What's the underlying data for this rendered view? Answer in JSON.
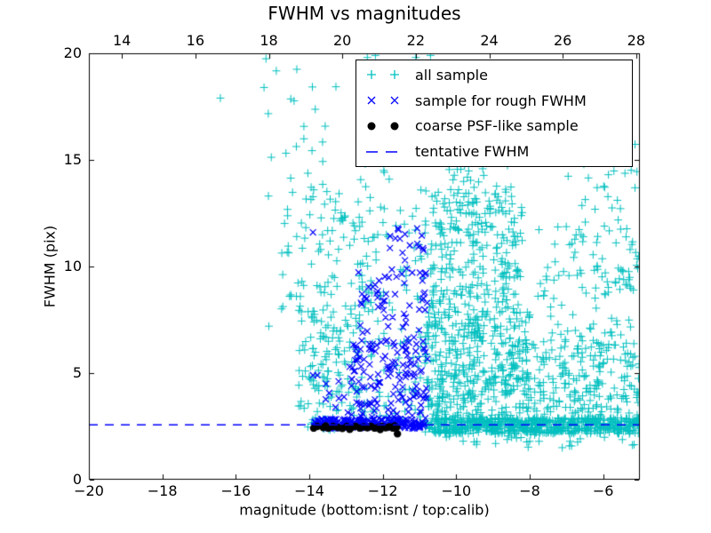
{
  "chart_data": {
    "type": "scatter",
    "title": "FWHM vs magnitudes",
    "xlabel": "magnitude (bottom:isnt / top:calib)",
    "ylabel": "FWHM (pix)",
    "grid": false,
    "legend_position": "upper right",
    "background_color": "#ffffff",
    "axes_color": "#000000",
    "x_bottom": {
      "min": -20,
      "max": -5,
      "ticks": [
        -20,
        -18,
        -16,
        -14,
        -12,
        -10,
        -8,
        -6
      ],
      "tick_labels": [
        "−20",
        "−18",
        "−16",
        "−14",
        "−12",
        "−10",
        "−8",
        "−6"
      ]
    },
    "x_top": {
      "min": 13.1,
      "max": 28.1,
      "ticks": [
        14,
        16,
        18,
        20,
        22,
        24,
        26,
        28
      ],
      "tick_labels": [
        "14",
        "16",
        "18",
        "20",
        "22",
        "24",
        "26",
        "28"
      ]
    },
    "y": {
      "min": 0,
      "max": 20,
      "ticks": [
        0,
        5,
        10,
        15,
        20
      ],
      "tick_labels": [
        "0",
        "5",
        "10",
        "15",
        "20"
      ]
    },
    "tentative_fwhm_value": 2.57,
    "series": [
      {
        "name": "all sample",
        "marker": "plus",
        "color": "#00bfbf",
        "clusters": [
          {
            "n": 28,
            "x": [
              -15.3,
              -13.1
            ],
            "y": [
              13.0,
              19.8
            ]
          },
          {
            "n": 85,
            "x": [
              -14.8,
              -12.2
            ],
            "y": [
              8.0,
              13.5
            ]
          },
          {
            "n": 130,
            "x": [
              -14.3,
              -12.6
            ],
            "y": [
              2.9,
              8.0
            ]
          },
          {
            "n": 70,
            "x": [
              -12.7,
              -10.7
            ],
            "y": [
              12.0,
              19.5
            ]
          },
          {
            "n": 70,
            "x": [
              -12.7,
              -10.7
            ],
            "y": [
              5.5,
              12.0
            ]
          },
          {
            "n": 45,
            "x": [
              -12.6,
              -10.85
            ],
            "y": [
              2.5,
              5.5
            ]
          },
          {
            "n": 420,
            "x": [
              -10.85,
              -8.0
            ],
            "y": [
              2.9,
              8.0
            ]
          },
          {
            "n": 260,
            "x": [
              -10.7,
              -8.2
            ],
            "y": [
              8.0,
              13.5
            ]
          },
          {
            "n": 80,
            "x": [
              -10.5,
              -8.5
            ],
            "y": [
              13.5,
              19.5
            ]
          },
          {
            "n": 230,
            "x": [
              -8.2,
              -5.0
            ],
            "y": [
              2.7,
              6.5
            ]
          },
          {
            "n": 110,
            "x": [
              -7.8,
              -5.0
            ],
            "y": [
              6.5,
              12.0
            ]
          },
          {
            "n": 30,
            "x": [
              -7.0,
              -5.0
            ],
            "y": [
              12.0,
              16.5
            ]
          },
          {
            "n": 650,
            "x": [
              -10.85,
              -4.95
            ],
            "y": [
              2.15,
              2.9
            ]
          },
          {
            "n": 28,
            "x": [
              -10.5,
              -5.1
            ],
            "y": [
              1.5,
              2.15
            ]
          },
          {
            "n": 18,
            "x": [
              -14.05,
              -12.8
            ],
            "y": [
              2.3,
              2.9
            ]
          }
        ],
        "points": [
          [
            -16.42,
            17.9
          ],
          [
            -15.1,
            7.2
          ],
          [
            -12.42,
            19.8
          ],
          [
            -12.3,
            19.4
          ],
          [
            -12.2,
            19.9
          ],
          [
            -11.1,
            19.8
          ],
          [
            -10.7,
            19.9
          ],
          [
            -13.95,
            4.7
          ],
          [
            -14.2,
            9.3
          ],
          [
            -14.35,
            8.6
          ]
        ]
      },
      {
        "name": "sample for rough FWHM",
        "marker": "x",
        "color": "#0000ff",
        "clusters": [
          {
            "n": 210,
            "x": [
              -13.9,
              -10.78
            ],
            "y": [
              2.4,
              2.85
            ]
          },
          {
            "n": 130,
            "x": [
              -12.8,
              -10.78
            ],
            "y": [
              2.85,
              6.5
            ]
          },
          {
            "n": 55,
            "x": [
              -12.7,
              -10.78
            ],
            "y": [
              6.5,
              9.8
            ]
          },
          {
            "n": 18,
            "x": [
              -11.9,
              -10.8
            ],
            "y": [
              9.8,
              11.9
            ]
          },
          {
            "n": 14,
            "x": [
              -13.6,
              -12.8
            ],
            "y": [
              2.85,
              5.5
            ]
          }
        ],
        "points": [
          [
            -13.9,
            11.6
          ],
          [
            -13.9,
            4.9
          ],
          [
            -13.78,
            4.9
          ]
        ]
      },
      {
        "name": "coarse PSF-like sample",
        "marker": "dot",
        "color": "#000000",
        "clusters": [],
        "points": [
          [
            -13.88,
            2.42
          ],
          [
            -13.78,
            2.5
          ],
          [
            -13.62,
            2.45
          ],
          [
            -13.48,
            2.42
          ],
          [
            -13.55,
            2.52
          ],
          [
            -13.35,
            2.5
          ],
          [
            -13.22,
            2.45
          ],
          [
            -13.1,
            2.4
          ],
          [
            -12.98,
            2.5
          ],
          [
            -12.9,
            2.36
          ],
          [
            -12.86,
            2.44
          ],
          [
            -12.74,
            2.5
          ],
          [
            -12.62,
            2.42
          ],
          [
            -12.52,
            2.48
          ],
          [
            -12.42,
            2.44
          ],
          [
            -12.32,
            2.5
          ],
          [
            -12.22,
            2.42
          ],
          [
            -12.12,
            2.46
          ],
          [
            -12.07,
            2.35
          ],
          [
            -12.02,
            2.5
          ],
          [
            -11.92,
            2.44
          ],
          [
            -11.82,
            2.48
          ],
          [
            -11.72,
            2.42
          ],
          [
            -11.68,
            2.52
          ],
          [
            -11.62,
            2.46
          ],
          [
            -11.6,
            2.15
          ]
        ]
      },
      {
        "name": "tentative FWHM",
        "marker": "dashed-line",
        "color": "#0000ff",
        "y_value": 2.57
      }
    ]
  }
}
